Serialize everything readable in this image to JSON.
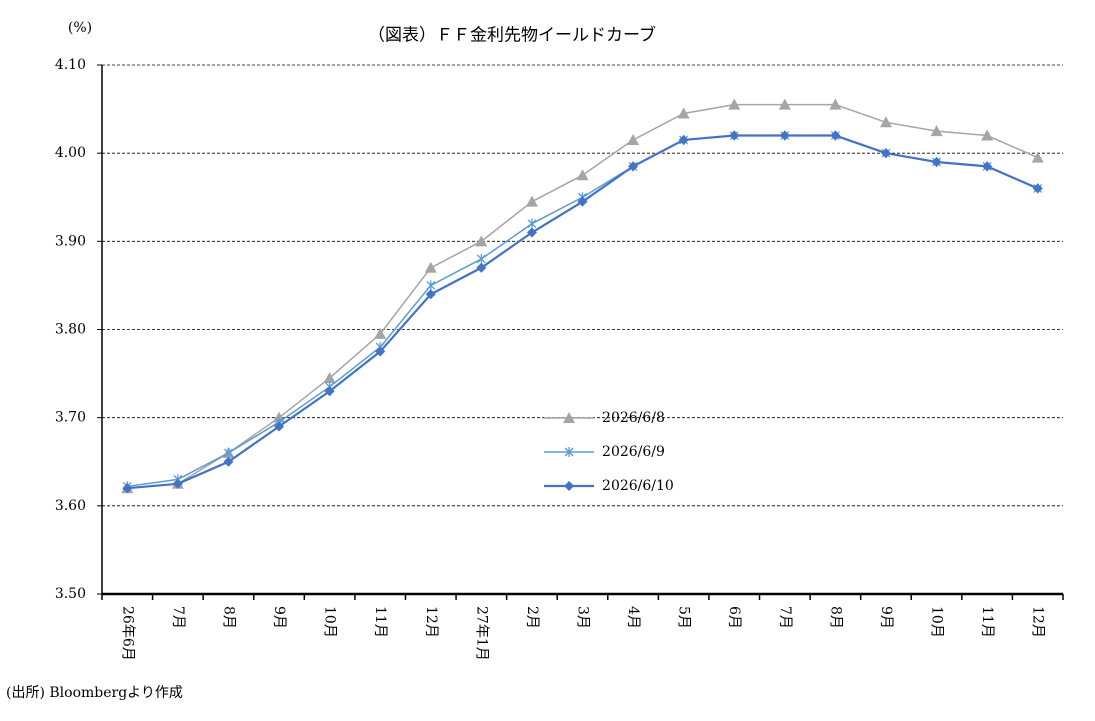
{
  "chart_data": {
    "type": "line",
    "title": "（図表）ＦＦ金利先物イールドカーブ",
    "y_label": "(%)",
    "source": "(出所) Bloombergより作成",
    "categories": [
      "26年6月",
      "7月",
      "8月",
      "9月",
      "10月",
      "11月",
      "12月",
      "27年1月",
      "2月",
      "3月",
      "4月",
      "5月",
      "6月",
      "7月",
      "8月",
      "9月",
      "10月",
      "11月",
      "12月"
    ],
    "series": [
      {
        "name": "2026/6/8",
        "color": "#a5a5a5",
        "marker": "triangle",
        "values": [
          3.62,
          3.625,
          3.66,
          3.7,
          3.745,
          3.795,
          3.87,
          3.9,
          3.945,
          3.975,
          4.015,
          4.045,
          4.055,
          4.055,
          4.055,
          4.035,
          4.025,
          4.02,
          3.995
        ]
      },
      {
        "name": "2026/6/9",
        "color": "#5b9bd5",
        "marker": "star",
        "values": [
          3.622,
          3.63,
          3.66,
          3.695,
          3.735,
          3.78,
          3.85,
          3.88,
          3.92,
          3.95,
          3.985,
          4.015,
          4.02,
          4.02,
          4.02,
          4.0,
          3.99,
          3.985,
          3.96
        ]
      },
      {
        "name": "2026/6/10",
        "color": "#4472c4",
        "marker": "diamond",
        "values": [
          3.62,
          3.625,
          3.65,
          3.69,
          3.73,
          3.775,
          3.84,
          3.87,
          3.91,
          3.945,
          3.985,
          4.015,
          4.02,
          4.02,
          4.02,
          4.0,
          3.99,
          3.985,
          3.96
        ]
      }
    ],
    "ylim": [
      3.5,
      4.1
    ],
    "yticks": [
      {
        "value": 3.5,
        "label": "3.50"
      },
      {
        "value": 3.6,
        "label": "3.60"
      },
      {
        "value": 3.7,
        "label": "3.70"
      },
      {
        "value": 3.8,
        "label": "3.80"
      },
      {
        "value": 3.9,
        "label": "3.90"
      },
      {
        "value": 4.0,
        "label": "4.00"
      },
      {
        "value": 4.1,
        "label": "4.10"
      }
    ],
    "grid": true,
    "legend": "center"
  }
}
